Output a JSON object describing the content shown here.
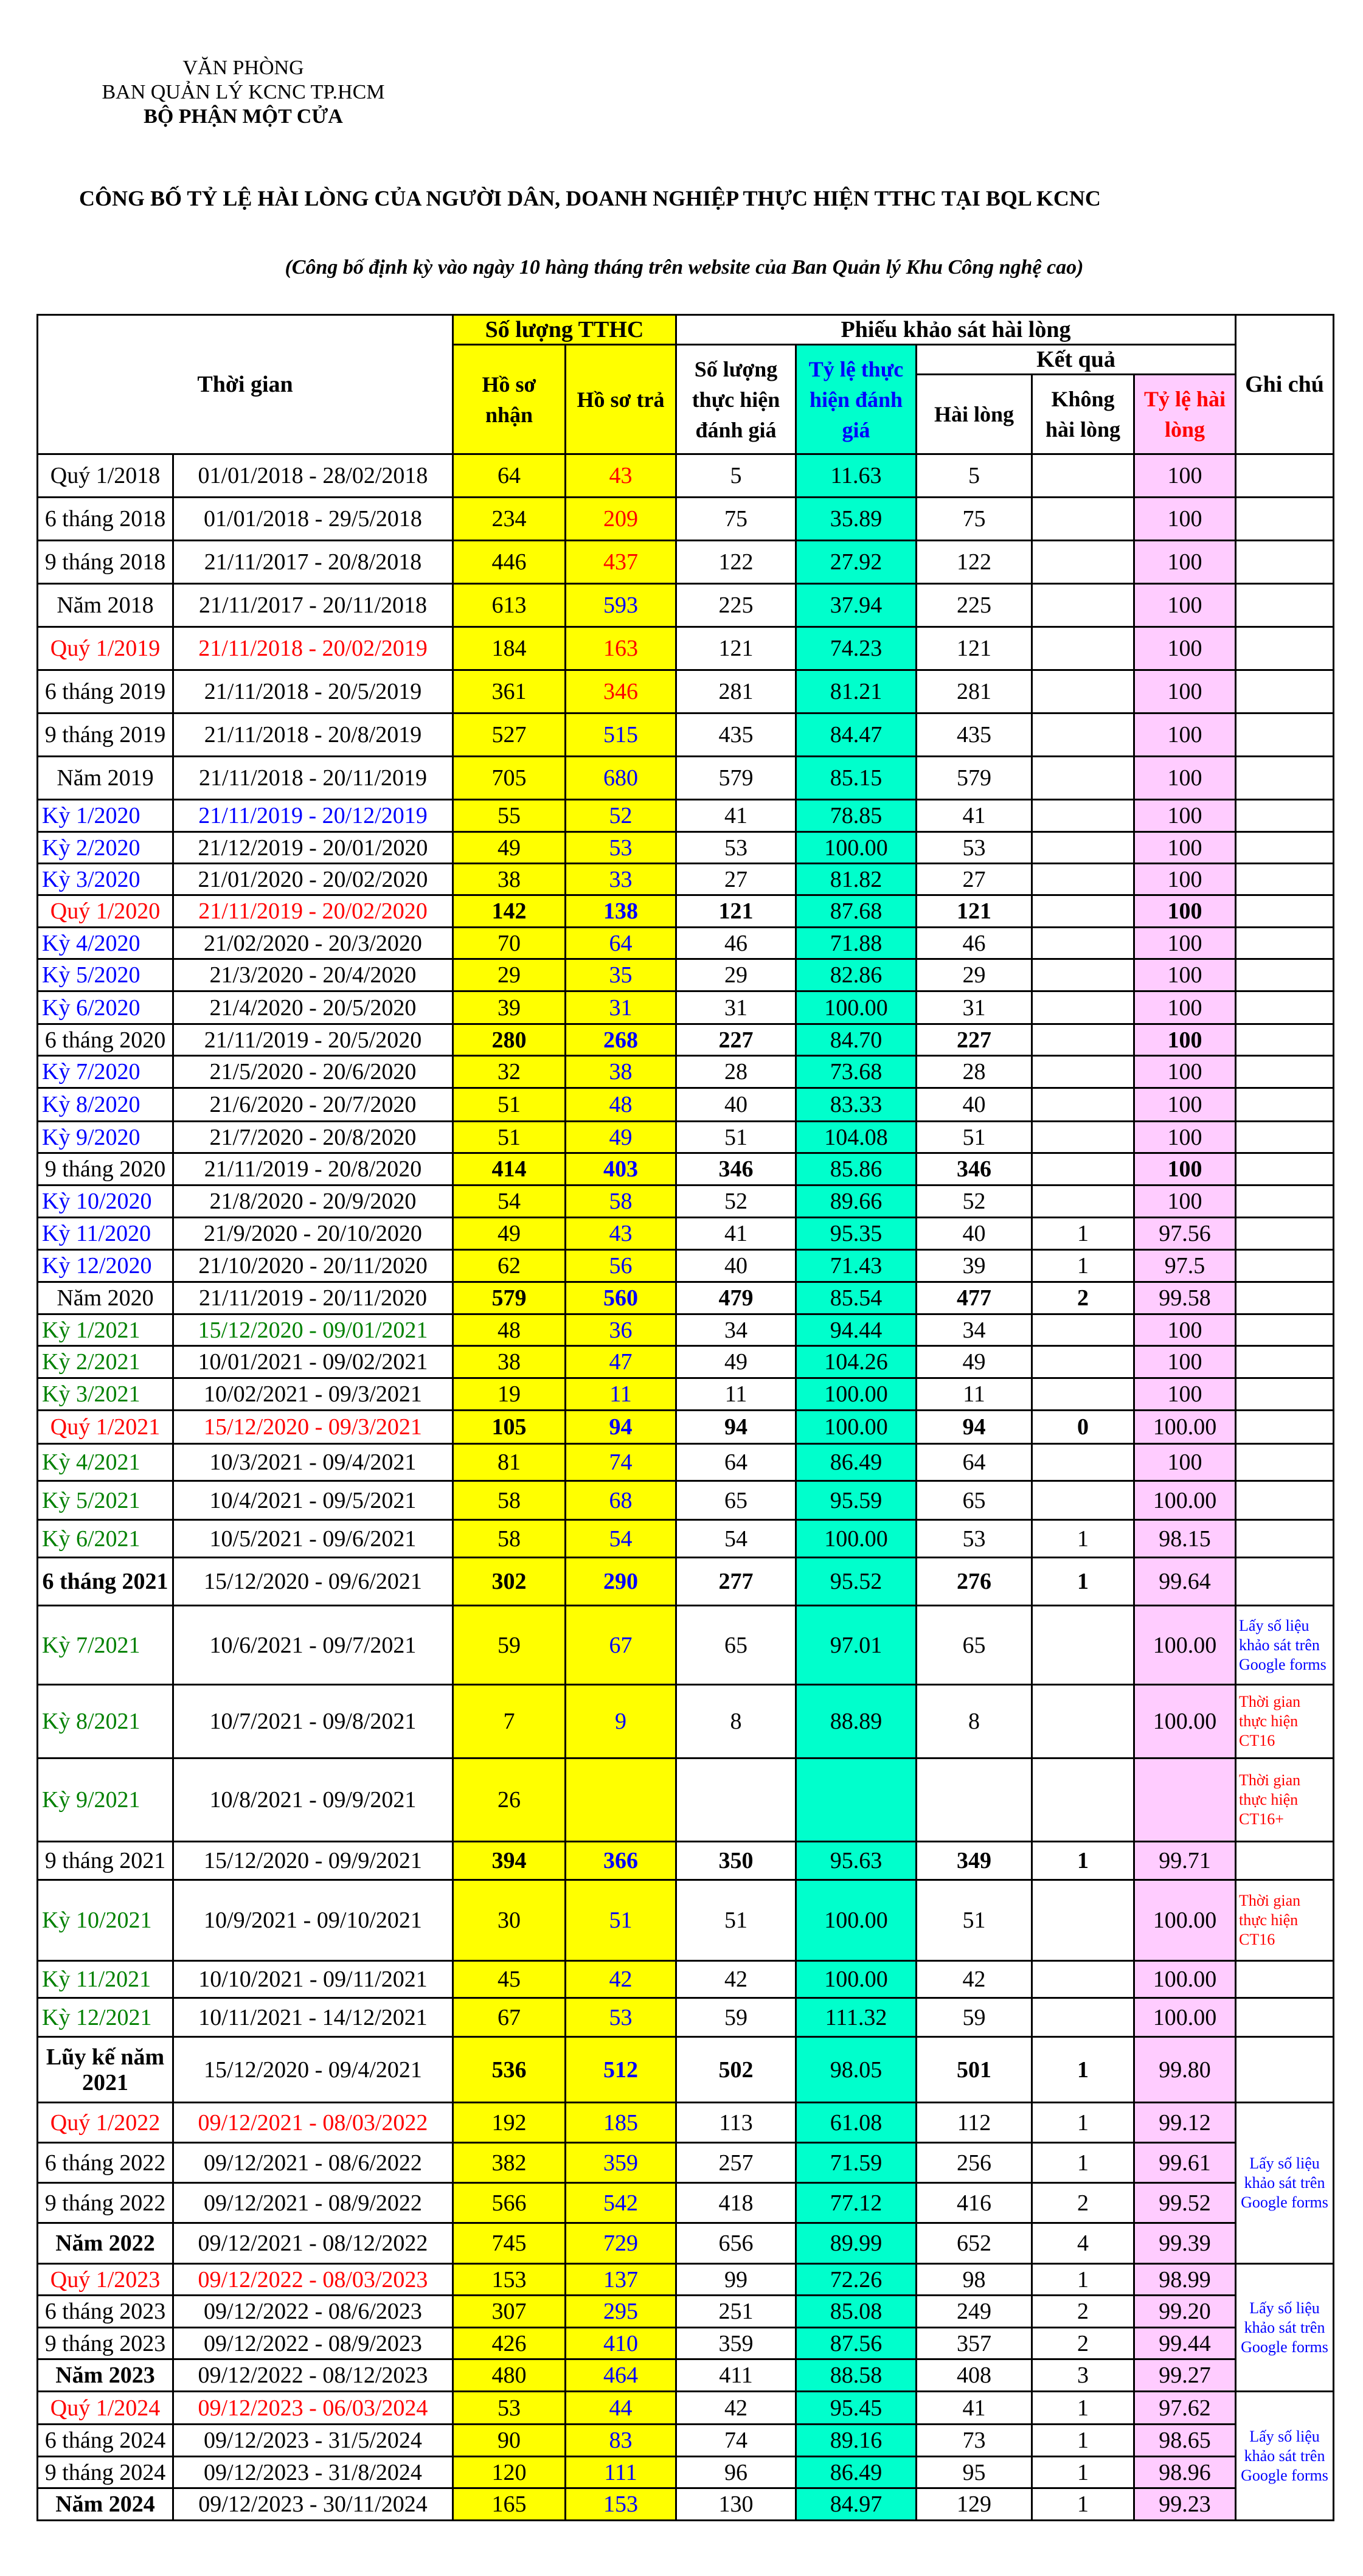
{
  "header": {
    "org_line1": "VĂN PHÒNG",
    "org_line2": "BAN QUẢN LÝ KCNC TP.HCM",
    "org_line3": "BỘ PHẬN MỘT CỬA",
    "title": "CÔNG BỐ TỶ LỆ HÀI LÒNG CỦA NGƯỜI DÂN, DOANH NGHIỆP THỰC HIỆN TTHC TẠI BQL KCNC",
    "subtitle": "(Công bố định kỳ vào ngày 10 hàng tháng trên website của Ban Quản lý Khu Công nghệ cao)"
  },
  "colors": {
    "yellow": "#FFFF00",
    "teal": "#00FFCC",
    "pink": "#FFCCFF",
    "blue": "#0000FF",
    "red": "#FF0000",
    "green": "#008000"
  },
  "columns": {
    "period": "Thời gian",
    "tthc_group": "Số lượng TTHC",
    "received": "Hồ sơ nhận",
    "returned": "Hồ sơ trả",
    "survey_group": "Phiếu khảo sát hài lòng",
    "surveyed": "Số lượng thực hiện đánh giá",
    "rate_done": "Tỷ lệ thực hiện đánh giá",
    "result_group": "Kết quả",
    "satisfied": "Hài lòng",
    "unsatisfied": "Không hài lòng",
    "rate_satisfied": "Tỷ lệ hài lòng",
    "note": "Ghi chú"
  },
  "notes": {
    "google": "Lấy số liệu khảo sát trên Google forms",
    "ct16": "Thời gian thực hiện CT16",
    "ct16plus": "Thời gian thực hiện CT16+"
  },
  "rows": [
    {
      "period": "Quý 1/2018",
      "range": "01/01/2018 - 28/02/2018",
      "received": "64",
      "returned": "43",
      "surveyed": "5",
      "rate_done": "11.63",
      "satisfied": "5",
      "unsatisfied": "",
      "rate_satisfied": "100",
      "returned_color": "red"
    },
    {
      "period": "6 tháng 2018",
      "range": "01/01/2018 - 29/5/2018",
      "received": "234",
      "returned": "209",
      "surveyed": "75",
      "rate_done": "35.89",
      "satisfied": "75",
      "unsatisfied": "",
      "rate_satisfied": "100",
      "returned_color": "red"
    },
    {
      "period": "9 tháng 2018",
      "range": "21/11/2017 - 20/8/2018",
      "received": "446",
      "returned": "437",
      "surveyed": "122",
      "rate_done": "27.92",
      "satisfied": "122",
      "unsatisfied": "",
      "rate_satisfied": "100",
      "returned_color": "red"
    },
    {
      "period": "Năm 2018",
      "range": "21/11/2017 - 20/11/2018",
      "received": "613",
      "returned": "593",
      "surveyed": "225",
      "rate_done": "37.94",
      "satisfied": "225",
      "unsatisfied": "",
      "rate_satisfied": "100"
    },
    {
      "period": "Quý 1/2019",
      "range": "21/11/2018 - 20/02/2019",
      "received": "184",
      "returned": "163",
      "surveyed": "121",
      "rate_done": "74.23",
      "satisfied": "121",
      "unsatisfied": "",
      "rate_satisfied": "100",
      "label_color": "red",
      "range_color": "red",
      "returned_color": "red"
    },
    {
      "period": "6 tháng 2019",
      "range": "21/11/2018 - 20/5/2019",
      "received": "361",
      "returned": "346",
      "surveyed": "281",
      "rate_done": "81.21",
      "satisfied": "281",
      "unsatisfied": "",
      "rate_satisfied": "100",
      "returned_color": "red"
    },
    {
      "period": "9 tháng 2019",
      "range": "21/11/2018 - 20/8/2019",
      "received": "527",
      "returned": "515",
      "surveyed": "435",
      "rate_done": "84.47",
      "satisfied": "435",
      "unsatisfied": "",
      "rate_satisfied": "100"
    },
    {
      "period": "Năm 2019",
      "range": "21/11/2018 - 20/11/2019",
      "received": "705",
      "returned": "680",
      "surveyed": "579",
      "rate_done": "85.15",
      "satisfied": "579",
      "unsatisfied": "",
      "rate_satisfied": "100"
    },
    {
      "period": "Kỳ 1/2020",
      "range": "21/11/2019 - 20/12/2019",
      "received": "55",
      "returned": "52",
      "surveyed": "41",
      "rate_done": "78.85",
      "satisfied": "41",
      "unsatisfied": "",
      "rate_satisfied": "100",
      "label_color": "blue",
      "range_color": "blue"
    },
    {
      "period": "Kỳ 2/2020",
      "range": "21/12/2019 - 20/01/2020",
      "received": "49",
      "returned": "53",
      "surveyed": "53",
      "rate_done": "100.00",
      "satisfied": "53",
      "unsatisfied": "",
      "rate_satisfied": "100",
      "label_color": "blue"
    },
    {
      "period": "Kỳ 3/2020",
      "range": "21/01/2020 - 20/02/2020",
      "received": "38",
      "returned": "33",
      "surveyed": "27",
      "rate_done": "81.82",
      "satisfied": "27",
      "unsatisfied": "",
      "rate_satisfied": "100",
      "label_color": "blue"
    },
    {
      "period": "Quý 1/2020",
      "range": "21/11/2019 - 20/02/2020",
      "received": "142",
      "returned": "138",
      "surveyed": "121",
      "rate_done": "87.68",
      "satisfied": "121",
      "unsatisfied": "",
      "rate_satisfied": "100",
      "label_color": "red",
      "range_color": "red",
      "bold": true,
      "bold_rate": true
    },
    {
      "period": "Kỳ 4/2020",
      "range": "21/02/2020 - 20/3/2020",
      "received": "70",
      "returned": "64",
      "surveyed": "46",
      "rate_done": "71.88",
      "satisfied": "46",
      "unsatisfied": "",
      "rate_satisfied": "100",
      "label_color": "blue"
    },
    {
      "period": "Kỳ 5/2020",
      "range": "21/3/2020 - 20/4/2020",
      "received": "29",
      "returned": "35",
      "surveyed": "29",
      "rate_done": "82.86",
      "satisfied": "29",
      "unsatisfied": "",
      "rate_satisfied": "100",
      "label_color": "blue"
    },
    {
      "period": "Kỳ 6/2020",
      "range": "21/4/2020 - 20/5/2020",
      "received": "39",
      "returned": "31",
      "surveyed": "31",
      "rate_done": "100.00",
      "satisfied": "31",
      "unsatisfied": "",
      "rate_satisfied": "100",
      "label_color": "blue"
    },
    {
      "period": "6 tháng 2020",
      "range": "21/11/2019 - 20/5/2020",
      "received": "280",
      "returned": "268",
      "surveyed": "227",
      "rate_done": "84.70",
      "satisfied": "227",
      "unsatisfied": "",
      "rate_satisfied": "100",
      "bold": true,
      "bold_rate": true
    },
    {
      "period": "Kỳ 7/2020",
      "range": "21/5/2020 - 20/6/2020",
      "received": "32",
      "returned": "38",
      "surveyed": "28",
      "rate_done": "73.68",
      "satisfied": "28",
      "unsatisfied": "",
      "rate_satisfied": "100",
      "label_color": "blue"
    },
    {
      "period": "Kỳ 8/2020",
      "range": "21/6/2020 - 20/7/2020",
      "received": "51",
      "returned": "48",
      "surveyed": "40",
      "rate_done": "83.33",
      "satisfied": "40",
      "unsatisfied": "",
      "rate_satisfied": "100",
      "label_color": "blue"
    },
    {
      "period": "Kỳ 9/2020",
      "range": "21/7/2020 - 20/8/2020",
      "received": "51",
      "returned": "49",
      "surveyed": "51",
      "rate_done": "104.08",
      "satisfied": "51",
      "unsatisfied": "",
      "rate_satisfied": "100",
      "label_color": "blue"
    },
    {
      "period": "9 tháng 2020",
      "range": "21/11/2019 - 20/8/2020",
      "received": "414",
      "returned": "403",
      "surveyed": "346",
      "rate_done": "85.86",
      "satisfied": "346",
      "unsatisfied": "",
      "rate_satisfied": "100",
      "bold": true,
      "bold_rate": true
    },
    {
      "period": "Kỳ 10/2020",
      "range": "21/8/2020 - 20/9/2020",
      "received": "54",
      "returned": "58",
      "surveyed": "52",
      "rate_done": "89.66",
      "satisfied": "52",
      "unsatisfied": "",
      "rate_satisfied": "100",
      "label_color": "blue"
    },
    {
      "period": "Kỳ 11/2020",
      "range": "21/9/2020 - 20/10/2020",
      "received": "49",
      "returned": "43",
      "surveyed": "41",
      "rate_done": "95.35",
      "satisfied": "40",
      "unsatisfied": "1",
      "rate_satisfied": "97.56",
      "label_color": "blue"
    },
    {
      "period": "Kỳ 12/2020",
      "range": "21/10/2020 - 20/11/2020",
      "received": "62",
      "returned": "56",
      "surveyed": "40",
      "rate_done": "71.43",
      "satisfied": "39",
      "unsatisfied": "1",
      "rate_satisfied": "97.5",
      "label_color": "blue"
    },
    {
      "period": "Năm 2020",
      "range": "21/11/2019 - 20/11/2020",
      "received": "579",
      "returned": "560",
      "surveyed": "479",
      "rate_done": "85.54",
      "satisfied": "477",
      "unsatisfied": "2",
      "rate_satisfied": "99.58",
      "bold": true
    },
    {
      "period": "Kỳ 1/2021",
      "range": "15/12/2020 - 09/01/2021",
      "received": "48",
      "returned": "36",
      "surveyed": "34",
      "rate_done": "94.44",
      "satisfied": "34",
      "unsatisfied": "",
      "rate_satisfied": "100",
      "label_color": "green",
      "range_color": "green"
    },
    {
      "period": "Kỳ 2/2021",
      "range": "10/01/2021 - 09/02/2021",
      "received": "38",
      "returned": "47",
      "surveyed": "49",
      "rate_done": "104.26",
      "satisfied": "49",
      "unsatisfied": "",
      "rate_satisfied": "100",
      "label_color": "green"
    },
    {
      "period": "Kỳ 3/2021",
      "range": "10/02/2021 - 09/3/2021",
      "received": "19",
      "returned": "11",
      "surveyed": "11",
      "rate_done": "100.00",
      "satisfied": "11",
      "unsatisfied": "",
      "rate_satisfied": "100",
      "label_color": "green"
    },
    {
      "period": "Quý 1/2021",
      "range": "15/12/2020 - 09/3/2021",
      "received": "105",
      "returned": "94",
      "surveyed": "94",
      "rate_done": "100.00",
      "satisfied": "94",
      "unsatisfied": "0",
      "rate_satisfied": "100.00",
      "label_color": "red",
      "range_color": "red",
      "bold": true
    },
    {
      "period": "Kỳ 4/2021",
      "range": "10/3/2021 - 09/4/2021",
      "received": "81",
      "returned": "74",
      "surveyed": "64",
      "rate_done": "86.49",
      "satisfied": "64",
      "unsatisfied": "",
      "rate_satisfied": "100",
      "label_color": "green"
    },
    {
      "period": "Kỳ 5/2021",
      "range": "10/4/2021 - 09/5/2021",
      "received": "58",
      "returned": "68",
      "surveyed": "65",
      "rate_done": "95.59",
      "satisfied": "65",
      "unsatisfied": "",
      "rate_satisfied": "100.00",
      "label_color": "green"
    },
    {
      "period": "Kỳ 6/2021",
      "range": "10/5/2021 - 09/6/2021",
      "received": "58",
      "returned": "54",
      "surveyed": "54",
      "rate_done": "100.00",
      "satisfied": "53",
      "unsatisfied": "1",
      "rate_satisfied": "98.15",
      "label_color": "green"
    },
    {
      "period": "6 tháng 2021",
      "range": "15/12/2020 - 09/6/2021",
      "received": "302",
      "returned": "290",
      "surveyed": "277",
      "rate_done": "95.52",
      "satisfied": "276",
      "unsatisfied": "1",
      "rate_satisfied": "99.64",
      "bold": true,
      "bold_label": true
    },
    {
      "period": "Kỳ 7/2021",
      "range": "10/6/2021 - 09/7/2021",
      "received": "59",
      "returned": "67",
      "surveyed": "65",
      "rate_done": "97.01",
      "satisfied": "65",
      "unsatisfied": "",
      "rate_satisfied": "100.00",
      "label_color": "green",
      "note": "google",
      "note_color": "blue"
    },
    {
      "period": "Kỳ 8/2021",
      "range": "10/7/2021 - 09/8/2021",
      "received": "7",
      "returned": "9",
      "surveyed": "8",
      "rate_done": "88.89",
      "satisfied": "8",
      "unsatisfied": "",
      "rate_satisfied": "100.00",
      "label_color": "green",
      "note": "ct16",
      "note_color": "red"
    },
    {
      "period": "Kỳ 9/2021",
      "range": "10/8/2021 - 09/9/2021",
      "received": "26",
      "returned": "",
      "surveyed": "",
      "rate_done": "",
      "satisfied": "",
      "unsatisfied": "",
      "rate_satisfied": "",
      "label_color": "green",
      "note": "ct16plus",
      "note_color": "red"
    },
    {
      "period": "9 tháng 2021",
      "range": "15/12/2020 - 09/9/2021",
      "received": "394",
      "returned": "366",
      "surveyed": "350",
      "rate_done": "95.63",
      "satisfied": "349",
      "unsatisfied": "1",
      "rate_satisfied": "99.71",
      "bold": true
    },
    {
      "period": "Kỳ 10/2021",
      "range": "10/9/2021 - 09/10/2021",
      "received": "30",
      "returned": "51",
      "surveyed": "51",
      "rate_done": "100.00",
      "satisfied": "51",
      "unsatisfied": "",
      "rate_satisfied": "100.00",
      "label_color": "green",
      "note": "ct16",
      "note_color": "red"
    },
    {
      "period": "Kỳ 11/2021",
      "range": "10/10/2021 - 09/11/2021",
      "received": "45",
      "returned": "42",
      "surveyed": "42",
      "rate_done": "100.00",
      "satisfied": "42",
      "unsatisfied": "",
      "rate_satisfied": "100.00",
      "label_color": "green"
    },
    {
      "period": "Kỳ 12/2021",
      "range": "10/11/2021 - 14/12/2021",
      "received": "67",
      "returned": "53",
      "surveyed": "59",
      "rate_done": "111.32",
      "satisfied": "59",
      "unsatisfied": "",
      "rate_satisfied": "100.00",
      "label_color": "green"
    },
    {
      "period": "Lũy kế năm 2021",
      "range": "15/12/2020 - 09/4/2021",
      "received": "536",
      "returned": "512",
      "surveyed": "502",
      "rate_done": "98.05",
      "satisfied": "501",
      "unsatisfied": "1",
      "rate_satisfied": "99.80",
      "bold": true,
      "bold_label": true
    },
    {
      "period": "Quý 1/2022",
      "range": "09/12/2021 - 08/03/2022",
      "received": "192",
      "returned": "185",
      "surveyed": "113",
      "rate_done": "61.08",
      "satisfied": "112",
      "unsatisfied": "1",
      "rate_satisfied": "99.12",
      "label_color": "red",
      "range_color": "red",
      "note": "google",
      "note_color": "blue",
      "note_span": 4
    },
    {
      "period": "6 tháng 2022",
      "range": "09/12/2021 - 08/6/2022",
      "received": "382",
      "returned": "359",
      "surveyed": "257",
      "rate_done": "71.59",
      "satisfied": "256",
      "unsatisfied": "1",
      "rate_satisfied": "99.61",
      "note_span": 0
    },
    {
      "period": "9 tháng 2022",
      "range": "09/12/2021 - 08/9/2022",
      "received": "566",
      "returned": "542",
      "surveyed": "418",
      "rate_done": "77.12",
      "satisfied": "416",
      "unsatisfied": "2",
      "rate_satisfied": "99.52",
      "note_span": 0
    },
    {
      "period": "Năm 2022",
      "range": "09/12/2021 - 08/12/2022",
      "received": "745",
      "returned": "729",
      "surveyed": "656",
      "rate_done": "89.99",
      "satisfied": "652",
      "unsatisfied": "4",
      "rate_satisfied": "99.39",
      "bold_label": true,
      "note_span": 0
    },
    {
      "period": "Quý 1/2023",
      "range": "09/12/2022 - 08/03/2023",
      "received": "153",
      "returned": "137",
      "surveyed": "99",
      "rate_done": "72.26",
      "satisfied": "98",
      "unsatisfied": "1",
      "rate_satisfied": "98.99",
      "label_color": "red",
      "range_color": "red",
      "note": "google",
      "note_color": "blue",
      "note_span": 4
    },
    {
      "period": "6 tháng 2023",
      "range": "09/12/2022 - 08/6/2023",
      "received": "307",
      "returned": "295",
      "surveyed": "251",
      "rate_done": "85.08",
      "satisfied": "249",
      "unsatisfied": "2",
      "rate_satisfied": "99.20",
      "note_span": 0
    },
    {
      "period": "9 tháng 2023",
      "range": "09/12/2022 - 08/9/2023",
      "received": "426",
      "returned": "410",
      "surveyed": "359",
      "rate_done": "87.56",
      "satisfied": "357",
      "unsatisfied": "2",
      "rate_satisfied": "99.44",
      "note_span": 0
    },
    {
      "period": "Năm 2023",
      "range": "09/12/2022 - 08/12/2023",
      "received": "480",
      "returned": "464",
      "surveyed": "411",
      "rate_done": "88.58",
      "satisfied": "408",
      "unsatisfied": "3",
      "rate_satisfied": "99.27",
      "bold_label": true,
      "note_span": 0
    },
    {
      "period": "Quý 1/2024",
      "range": "09/12/2023 - 06/03/2024",
      "received": "53",
      "returned": "44",
      "surveyed": "42",
      "rate_done": "95.45",
      "satisfied": "41",
      "unsatisfied": "1",
      "rate_satisfied": "97.62",
      "label_color": "red",
      "range_color": "red",
      "note": "google",
      "note_color": "blue",
      "note_span": 4
    },
    {
      "period": "6 tháng 2024",
      "range": "09/12/2023 - 31/5/2024",
      "received": "90",
      "returned": "83",
      "surveyed": "74",
      "rate_done": "89.16",
      "satisfied": "73",
      "unsatisfied": "1",
      "rate_satisfied": "98.65",
      "note_span": 0
    },
    {
      "period": "9 tháng 2024",
      "range": "09/12/2023 - 31/8/2024",
      "received": "120",
      "returned": "111",
      "surveyed": "96",
      "rate_done": "86.49",
      "satisfied": "95",
      "unsatisfied": "1",
      "rate_satisfied": "98.96",
      "note_span": 0
    },
    {
      "period": "Năm 2024",
      "range": "09/12/2023 - 30/11/2024",
      "received": "165",
      "returned": "153",
      "surveyed": "130",
      "rate_done": "84.97",
      "satisfied": "129",
      "unsatisfied": "1",
      "rate_satisfied": "99.23",
      "bold_label": true,
      "note_span": 0
    }
  ]
}
